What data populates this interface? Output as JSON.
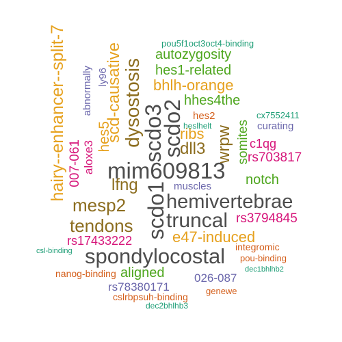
{
  "palette": {
    "dark_gray": "#4d4d4d",
    "brown": "#8c6d1f",
    "gold": "#e6a11e",
    "green": "#4ea61e",
    "magenta": "#d6157a",
    "purple": "#6a66ab",
    "orange": "#d45e1a",
    "teal": "#1f9e77"
  },
  "words": [
    {
      "text": "mim609813",
      "color": "dark_gray"
    },
    {
      "text": "hemivertebrae",
      "color": "dark_gray"
    },
    {
      "text": "scdo1",
      "color": "dark_gray"
    },
    {
      "text": "spondylocostal",
      "color": "dark_gray"
    },
    {
      "text": "truncal",
      "color": "dark_gray"
    },
    {
      "text": "scdo3",
      "color": "dark_gray"
    },
    {
      "text": "scdo2",
      "color": "dark_gray"
    },
    {
      "text": "mesp2",
      "color": "brown"
    },
    {
      "text": "tendons",
      "color": "brown"
    },
    {
      "text": "dysostosis",
      "color": "brown"
    },
    {
      "text": "lfng",
      "color": "brown"
    },
    {
      "text": "dll3",
      "color": "brown"
    },
    {
      "text": "wrpw",
      "color": "brown"
    },
    {
      "text": "hairy--enhancer--split-7",
      "color": "gold"
    },
    {
      "text": "scd-causative",
      "color": "gold"
    },
    {
      "text": "bhlh-orange",
      "color": "gold"
    },
    {
      "text": "e47-induced",
      "color": "gold"
    },
    {
      "text": "ribs",
      "color": "gold"
    },
    {
      "text": "hes5",
      "color": "gold"
    },
    {
      "text": "autozygosity",
      "color": "green"
    },
    {
      "text": "hes1-related",
      "color": "green"
    },
    {
      "text": "hhes4the",
      "color": "green"
    },
    {
      "text": "somites",
      "color": "green"
    },
    {
      "text": "notch",
      "color": "green"
    },
    {
      "text": "aligned",
      "color": "green"
    },
    {
      "text": "rs703817",
      "color": "magenta"
    },
    {
      "text": "c1qg",
      "color": "magenta"
    },
    {
      "text": "rs3794845",
      "color": "magenta"
    },
    {
      "text": "rs17433222",
      "color": "magenta"
    },
    {
      "text": "007-061",
      "color": "magenta"
    },
    {
      "text": "aloxe3",
      "color": "magenta"
    },
    {
      "text": "abnormally",
      "color": "purple"
    },
    {
      "text": "ly96",
      "color": "purple"
    },
    {
      "text": "muscles",
      "color": "purple"
    },
    {
      "text": "curating",
      "color": "purple"
    },
    {
      "text": "026-087",
      "color": "purple"
    },
    {
      "text": "rs78380171",
      "color": "purple"
    },
    {
      "text": "hes2",
      "color": "orange"
    },
    {
      "text": "integromic",
      "color": "orange"
    },
    {
      "text": "pou-binding",
      "color": "orange"
    },
    {
      "text": "nanog-binding",
      "color": "orange"
    },
    {
      "text": "cslrbpsuh-binding",
      "color": "orange"
    },
    {
      "text": "genewe",
      "color": "orange"
    },
    {
      "text": "pou5f1oct3oct4-binding",
      "color": "teal"
    },
    {
      "text": "heslhelt",
      "color": "teal"
    },
    {
      "text": "cx7552411",
      "color": "teal"
    },
    {
      "text": "csl-binding",
      "color": "teal"
    },
    {
      "text": "dec1bhlhb2",
      "color": "teal"
    },
    {
      "text": "dec2bhlhb3",
      "color": "teal"
    }
  ]
}
